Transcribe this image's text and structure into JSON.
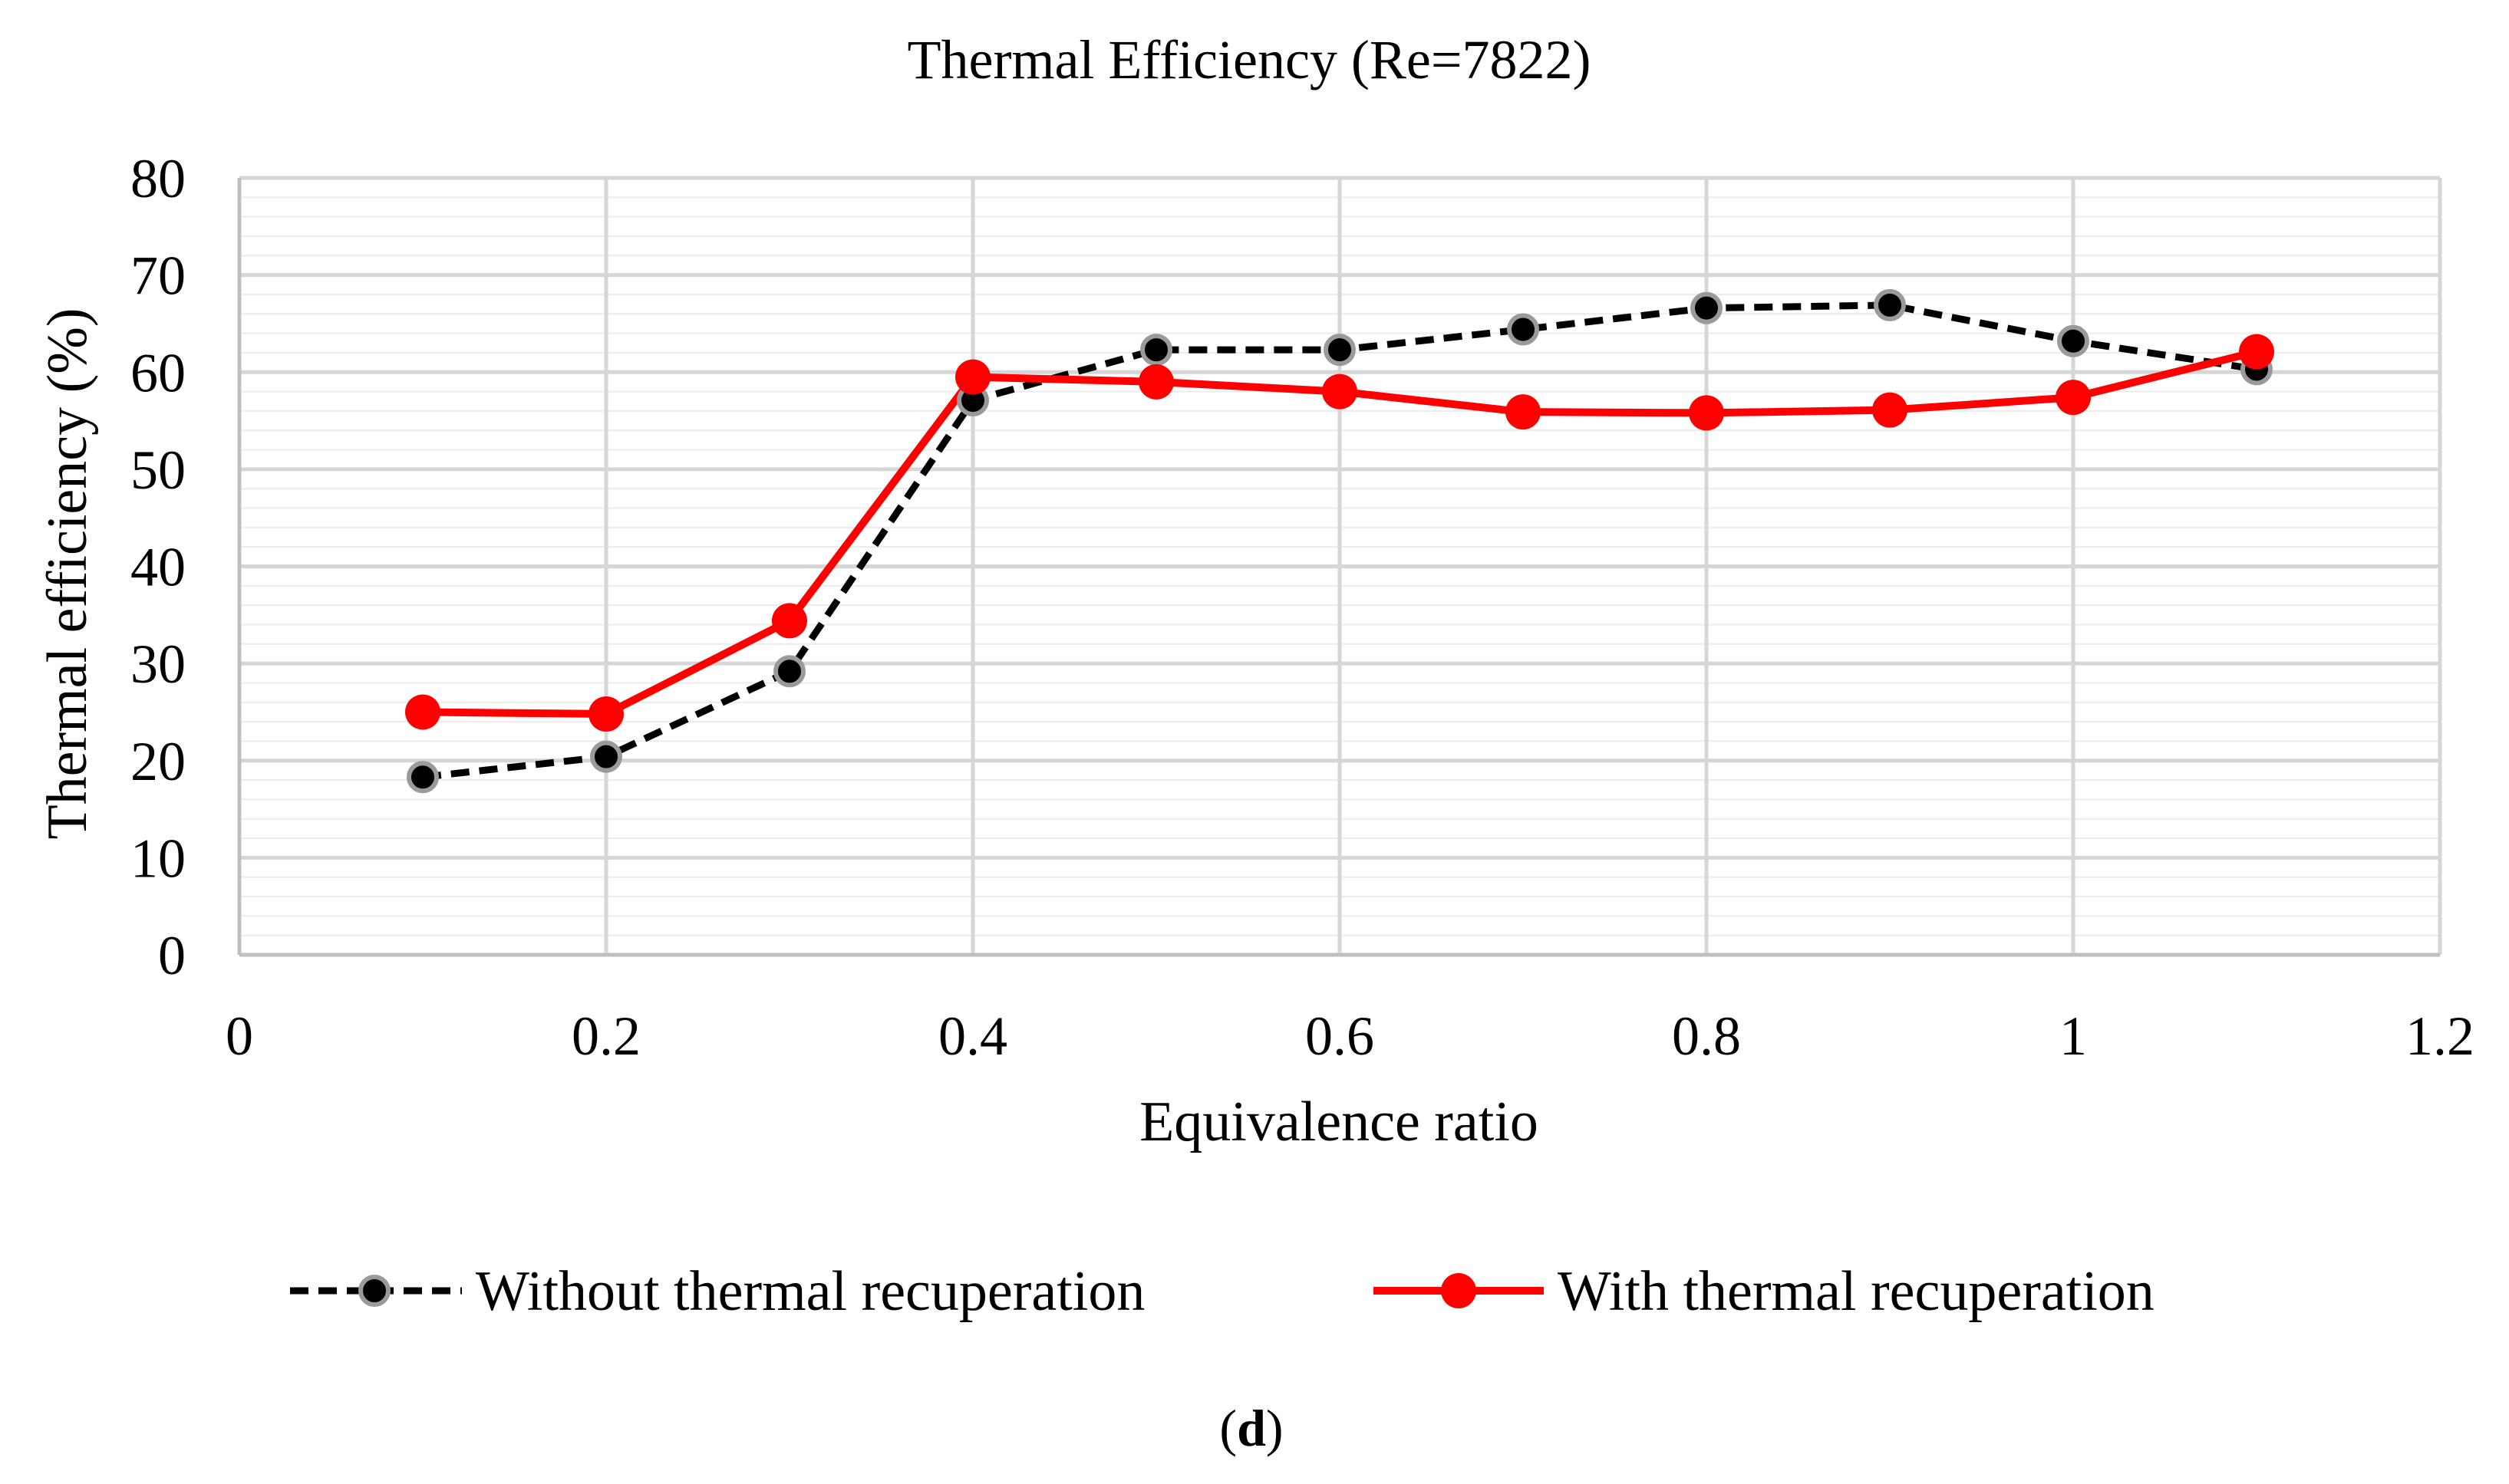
{
  "chart_data": {
    "type": "line",
    "title": "Thermal Efficiency (Re=7822)",
    "xlabel": "Equivalence ratio",
    "ylabel": "Thermal efficiency (%)",
    "xlim": [
      0,
      1.2
    ],
    "ylim": [
      0,
      80
    ],
    "xticks": [
      0,
      0.2,
      0.4,
      0.6,
      0.8,
      1,
      1.2
    ],
    "xtick_labels": [
      "0",
      "0.2",
      "0.4",
      "0.6",
      "0.8",
      "1",
      "1.2"
    ],
    "yticks": [
      0,
      10,
      20,
      30,
      40,
      50,
      60,
      70,
      80
    ],
    "ytick_labels": [
      "0",
      "10",
      "20",
      "30",
      "40",
      "50",
      "60",
      "70",
      "80"
    ],
    "grid": true,
    "legend_position": "bottom",
    "series": [
      {
        "name": "Without thermal recuperation",
        "color": "#000000",
        "marker_edge": "#9a9a9a",
        "line_style": "dashed",
        "x": [
          0.1,
          0.2,
          0.3,
          0.4,
          0.5,
          0.6,
          0.7,
          0.8,
          0.9,
          1.0,
          1.1
        ],
        "values": [
          18.3,
          20.4,
          29.2,
          57.1,
          62.3,
          62.3,
          64.4,
          66.6,
          66.9,
          63.2,
          60.3
        ]
      },
      {
        "name": "With thermal recuperation",
        "color": "#ff0000",
        "line_style": "solid",
        "x": [
          0.1,
          0.2,
          0.3,
          0.4,
          0.5,
          0.6,
          0.7,
          0.8,
          0.9,
          1.0,
          1.1
        ],
        "values": [
          25.0,
          24.8,
          34.4,
          59.5,
          59.0,
          58.0,
          55.9,
          55.8,
          56.1,
          57.4,
          62.1
        ]
      }
    ]
  },
  "caption": {
    "open": "(",
    "letter": "d",
    "close": ")"
  }
}
